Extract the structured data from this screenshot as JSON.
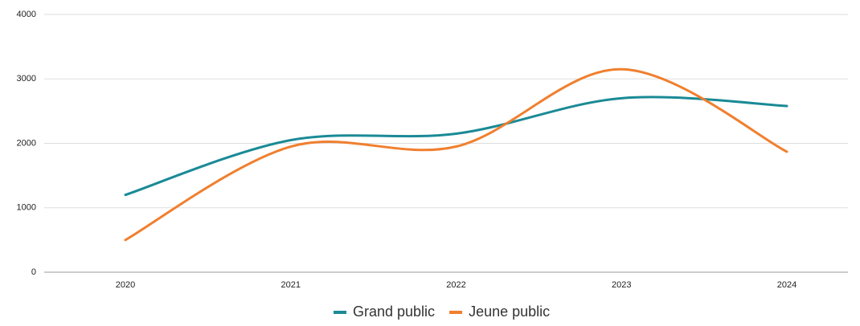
{
  "chart_data": {
    "type": "line",
    "categories": [
      "2020",
      "2021",
      "2022",
      "2023",
      "2024"
    ],
    "series": [
      {
        "name": "Grand public",
        "color": "#1a8a96",
        "values": [
          1200,
          2050,
          2150,
          2700,
          2580
        ]
      },
      {
        "name": "Jeune public",
        "color": "#f07f2e",
        "values": [
          500,
          1950,
          1950,
          3150,
          1870
        ]
      }
    ],
    "ylim": [
      0,
      4000
    ],
    "yticks": [
      0,
      1000,
      2000,
      3000,
      4000
    ],
    "grid": true,
    "smooth": true,
    "legend": "bottom"
  }
}
